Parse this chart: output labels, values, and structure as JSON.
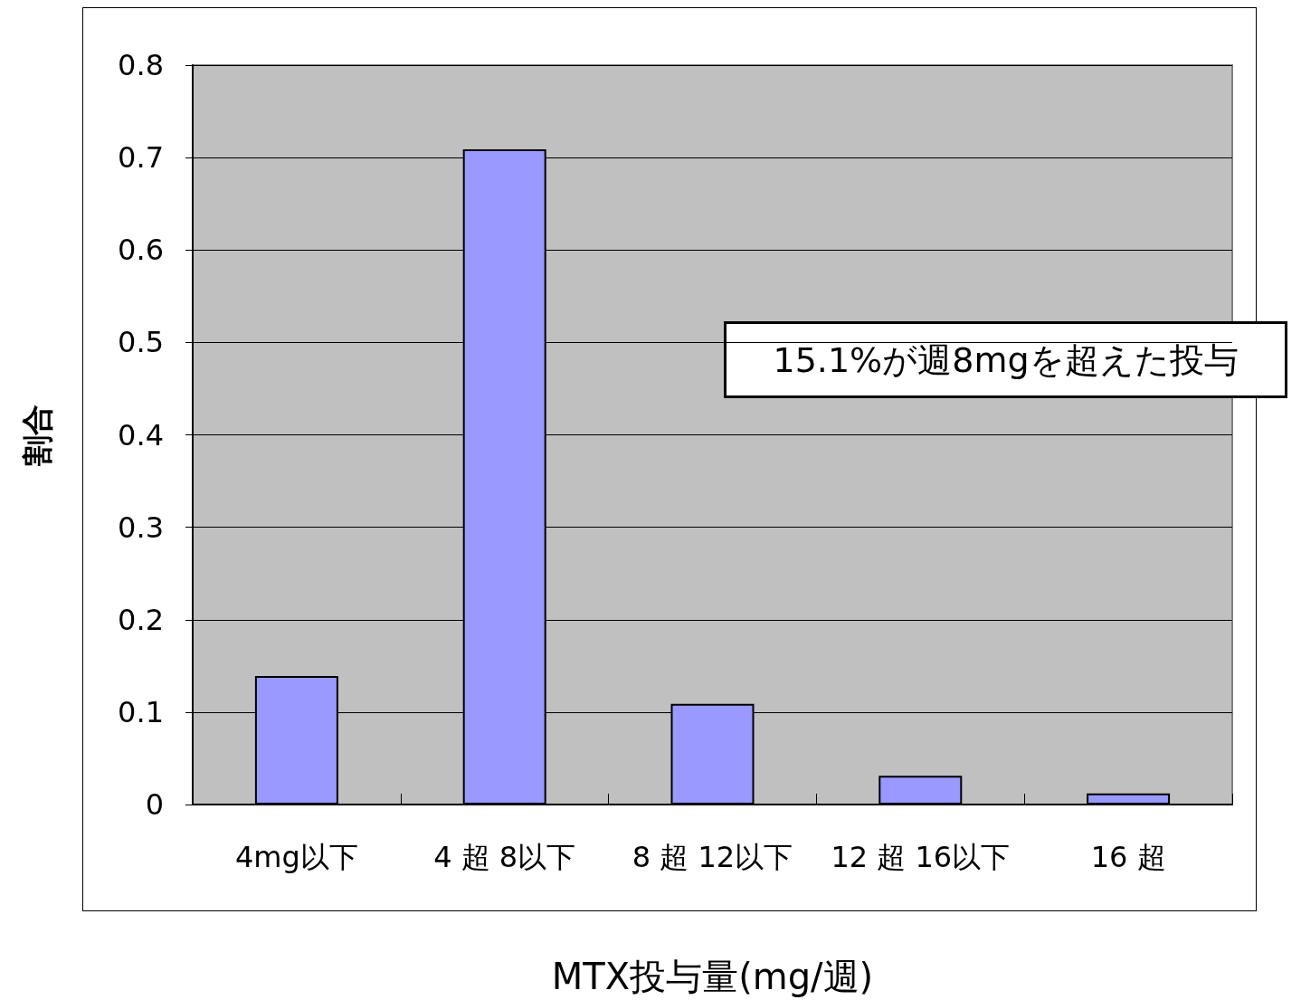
{
  "chart_data": {
    "type": "bar",
    "categories": [
      "4mg以下",
      "4 超 8以下",
      "8 超 12以下",
      "12 超 16以下",
      "16 超"
    ],
    "values": [
      0.139,
      0.709,
      0.109,
      0.031,
      0.012
    ],
    "color": "#9999ff",
    "xlabel": "MTX投与量(mg/週)",
    "ylabel": "割合",
    "ylim": [
      0,
      0.8
    ],
    "yticks": [
      0,
      0.1,
      0.2,
      0.3,
      0.4,
      0.5,
      0.6,
      0.7,
      0.8
    ],
    "grid": "y",
    "annotations": [
      "15.1%が週8mgを超えた投与"
    ]
  }
}
